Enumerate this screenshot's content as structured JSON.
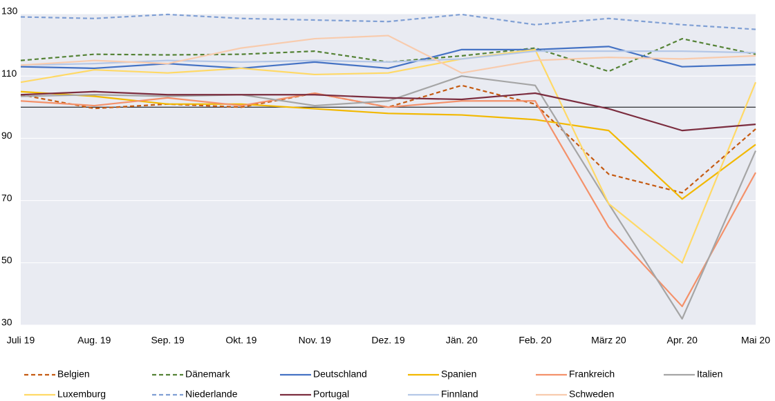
{
  "chart_data": {
    "type": "line",
    "categories": [
      "Juli 19",
      "Aug. 19",
      "Sep. 19",
      "Okt. 19",
      "Nov. 19",
      "Dez. 19",
      "Jän. 20",
      "Feb. 20",
      "März 20",
      "Apr. 20",
      "Mai 20"
    ],
    "ylim": [
      30,
      130
    ],
    "yticks": [
      30,
      50,
      70,
      90,
      110,
      130
    ],
    "grid": true,
    "reference_line": 100,
    "background": "#e9ebf2",
    "legend": "bottom",
    "series": [
      {
        "name": "Belgien",
        "color": "#c55a11",
        "dashed": true,
        "values": [
          104,
          99.6,
          101,
          100,
          104.5,
          100,
          107,
          101,
          78.5,
          72.5,
          93
        ]
      },
      {
        "name": "Dänemark",
        "color": "#548235",
        "dashed": true,
        "values": [
          115,
          117,
          116.8,
          117,
          118,
          114.5,
          116.5,
          119,
          111.5,
          122,
          117
        ]
      },
      {
        "name": "Deutschland",
        "color": "#4472c4",
        "dashed": false,
        "values": [
          113,
          112.5,
          114,
          112.5,
          114.5,
          112.5,
          118.5,
          118.5,
          119.5,
          113,
          113.7
        ]
      },
      {
        "name": "Spanien",
        "color": "#f2b800",
        "dashed": false,
        "values": [
          105,
          103.5,
          101,
          101,
          99.5,
          98,
          97.5,
          96,
          92.5,
          70.5,
          88
        ]
      },
      {
        "name": "Frankreich",
        "color": "#f4916a",
        "dashed": false,
        "values": [
          102,
          100.5,
          103,
          100.5,
          104.5,
          100,
          102,
          102,
          61.5,
          36,
          79
        ]
      },
      {
        "name": "Italien",
        "color": "#a5a5a5",
        "dashed": false,
        "values": [
          103.5,
          104,
          103.5,
          104,
          100.5,
          102,
          110,
          107,
          69,
          32,
          86
        ]
      },
      {
        "name": "Luxemburg",
        "color": "#ffd966",
        "dashed": false,
        "values": [
          108,
          112,
          111,
          112.5,
          110.5,
          111,
          115.5,
          118.5,
          69,
          50,
          108
        ]
      },
      {
        "name": "Niederlande",
        "color": "#7f9fd4",
        "dashed": true,
        "values": [
          129,
          128.5,
          129.8,
          128.5,
          128,
          127.5,
          129.8,
          126.5,
          128.5,
          126.5,
          125
        ]
      },
      {
        "name": "Portugal",
        "color": "#7b2c3e",
        "dashed": false,
        "values": [
          104,
          105,
          104,
          104,
          104,
          103,
          102.5,
          104.5,
          99.5,
          92.5,
          94.5
        ]
      },
      {
        "name": "Finnland",
        "color": "#b4c7e7",
        "dashed": false,
        "values": [
          113.5,
          114,
          115,
          114.5,
          115,
          114.5,
          115.5,
          118,
          118,
          118,
          117.5
        ]
      },
      {
        "name": "Schweden",
        "color": "#f8cbad",
        "dashed": false,
        "values": [
          113.5,
          115,
          114,
          119,
          122,
          123,
          111,
          115,
          116,
          115.5,
          116.5
        ]
      }
    ]
  }
}
